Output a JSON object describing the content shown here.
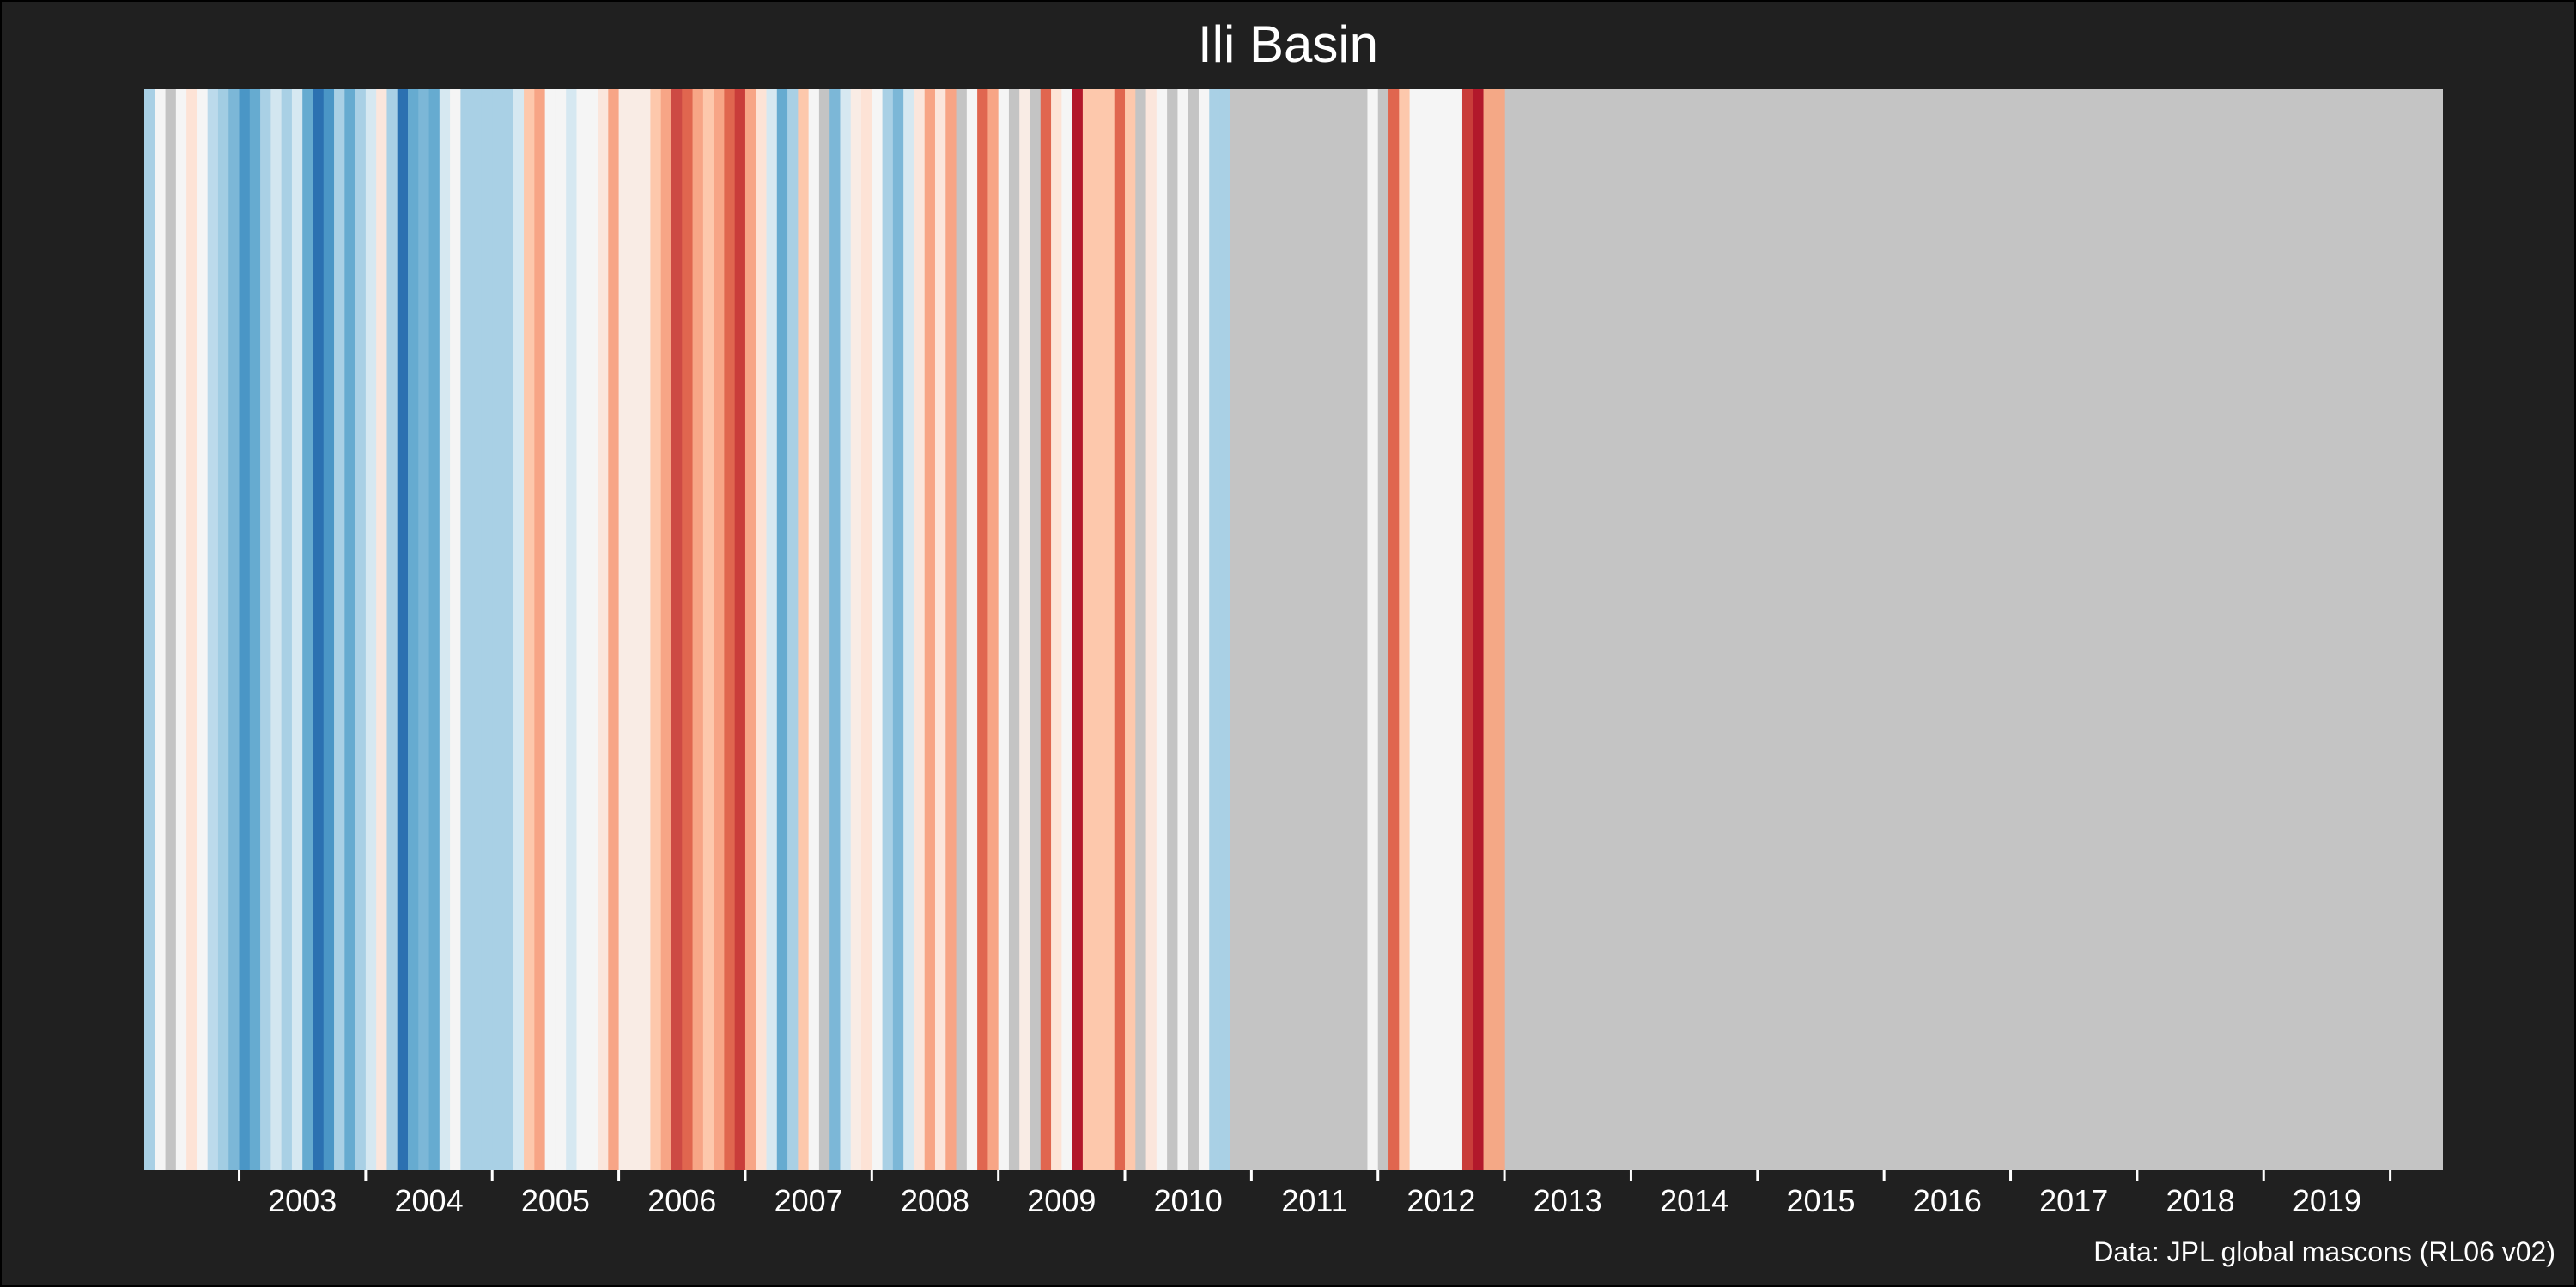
{
  "chart_data": {
    "type": "heatmap",
    "title": "Ili Basin",
    "xlabel": "",
    "ylabel": "",
    "caption": "Data: JPL global mascons (RL06 v02)",
    "x_start": "2002-04",
    "x_end": "2020-06",
    "tick_labels": [
      "2003",
      "2004",
      "2005",
      "2006",
      "2007",
      "2008",
      "2009",
      "2010",
      "2011",
      "2012",
      "2013",
      "2014",
      "2015",
      "2016",
      "2017",
      "2018",
      "2019"
    ],
    "missing_color": "#c4c4c4",
    "stripes": [
      {
        "month": "2002-04",
        "color": "#a9d0e5"
      },
      {
        "month": "2002-05",
        "color": "#f5f5f5"
      },
      {
        "month": "2002-06",
        "color": "#c4c4c4"
      },
      {
        "month": "2002-07",
        "color": "#f5f5f5"
      },
      {
        "month": "2002-08",
        "color": "#fde3d6"
      },
      {
        "month": "2002-09",
        "color": "#f5f5f5"
      },
      {
        "month": "2002-10",
        "color": "#bcdaeb"
      },
      {
        "month": "2002-11",
        "color": "#a2cde3"
      },
      {
        "month": "2002-12",
        "color": "#7cb7d7"
      },
      {
        "month": "2003-01",
        "color": "#4a96c6"
      },
      {
        "month": "2003-02",
        "color": "#66abd0"
      },
      {
        "month": "2003-03",
        "color": "#a9d0e5"
      },
      {
        "month": "2003-04",
        "color": "#d3e6f0"
      },
      {
        "month": "2003-05",
        "color": "#a9d0e5"
      },
      {
        "month": "2003-06",
        "color": "#d6e8f1"
      },
      {
        "month": "2003-07",
        "color": "#66abd0"
      },
      {
        "month": "2003-08",
        "color": "#2b71b1"
      },
      {
        "month": "2003-09",
        "color": "#4a96c6"
      },
      {
        "month": "2003-10",
        "color": "#a9d0e5"
      },
      {
        "month": "2003-11",
        "color": "#66abd0"
      },
      {
        "month": "2003-12",
        "color": "#a9d0e5"
      },
      {
        "month": "2004-01",
        "color": "#d6e8f1"
      },
      {
        "month": "2004-02",
        "color": "#fbe6dc"
      },
      {
        "month": "2004-03",
        "color": "#a9d0e5"
      },
      {
        "month": "2004-04",
        "color": "#2b71b1"
      },
      {
        "month": "2004-05",
        "color": "#66abd0"
      },
      {
        "month": "2004-06",
        "color": "#7cb7d7"
      },
      {
        "month": "2004-07",
        "color": "#66abd0"
      },
      {
        "month": "2004-08",
        "color": "#d6e8f1"
      },
      {
        "month": "2004-09",
        "color": "#f5f5f5"
      },
      {
        "month": "2004-10",
        "color": "#a9d0e5"
      },
      {
        "month": "2004-11",
        "color": "#a9d0e5"
      },
      {
        "month": "2004-12",
        "color": "#a9d0e5"
      },
      {
        "month": "2005-01",
        "color": "#a9d0e5"
      },
      {
        "month": "2005-02",
        "color": "#a9d0e5"
      },
      {
        "month": "2005-03",
        "color": "#d6e8f1"
      },
      {
        "month": "2005-04",
        "color": "#fdc8ac"
      },
      {
        "month": "2005-05",
        "color": "#f7a586"
      },
      {
        "month": "2005-06",
        "color": "#f5f5f5"
      },
      {
        "month": "2005-07",
        "color": "#f5f5f5"
      },
      {
        "month": "2005-08",
        "color": "#d6e8f1"
      },
      {
        "month": "2005-09",
        "color": "#f5f5f5"
      },
      {
        "month": "2005-10",
        "color": "#f5f5f5"
      },
      {
        "month": "2005-11",
        "color": "#fbe6dc"
      },
      {
        "month": "2005-12",
        "color": "#f7a586"
      },
      {
        "month": "2006-01",
        "color": "#f9ece5"
      },
      {
        "month": "2006-02",
        "color": "#f9ece5"
      },
      {
        "month": "2006-03",
        "color": "#f9ece5"
      },
      {
        "month": "2006-04",
        "color": "#fdc8ac"
      },
      {
        "month": "2006-05",
        "color": "#f7a586"
      },
      {
        "month": "2006-06",
        "color": "#cd4a44"
      },
      {
        "month": "2006-07",
        "color": "#e0664f"
      },
      {
        "month": "2006-08",
        "color": "#f7a586"
      },
      {
        "month": "2006-09",
        "color": "#fdc8ac"
      },
      {
        "month": "2006-10",
        "color": "#f7a586"
      },
      {
        "month": "2006-11",
        "color": "#e0664f"
      },
      {
        "month": "2006-12",
        "color": "#c93d3a"
      },
      {
        "month": "2007-01",
        "color": "#f7a586"
      },
      {
        "month": "2007-02",
        "color": "#fde3d6"
      },
      {
        "month": "2007-03",
        "color": "#d6e8f1"
      },
      {
        "month": "2007-04",
        "color": "#66abd0"
      },
      {
        "month": "2007-05",
        "color": "#a9d0e5"
      },
      {
        "month": "2007-06",
        "color": "#fdc8ac"
      },
      {
        "month": "2007-07",
        "color": "#f5f5f5"
      },
      {
        "month": "2007-08",
        "color": "#c4c4c4"
      },
      {
        "month": "2007-09",
        "color": "#7cb7d7"
      },
      {
        "month": "2007-10",
        "color": "#d6e8f1"
      },
      {
        "month": "2007-11",
        "color": "#f9ece5"
      },
      {
        "month": "2007-12",
        "color": "#fde3d6"
      },
      {
        "month": "2008-01",
        "color": "#f5f5f5"
      },
      {
        "month": "2008-02",
        "color": "#a9d0e5"
      },
      {
        "month": "2008-03",
        "color": "#7cb7d7"
      },
      {
        "month": "2008-04",
        "color": "#d6e8f1"
      },
      {
        "month": "2008-05",
        "color": "#fbe6dc"
      },
      {
        "month": "2008-06",
        "color": "#f7a586"
      },
      {
        "month": "2008-07",
        "color": "#fbe6dc"
      },
      {
        "month": "2008-08",
        "color": "#f7a586"
      },
      {
        "month": "2008-09",
        "color": "#c4c4c4"
      },
      {
        "month": "2008-10",
        "color": "#f5f5f5"
      },
      {
        "month": "2008-11",
        "color": "#e0664f"
      },
      {
        "month": "2008-12",
        "color": "#f7a586"
      },
      {
        "month": "2009-01",
        "color": "#f5f5f5"
      },
      {
        "month": "2009-02",
        "color": "#c4c4c4"
      },
      {
        "month": "2009-03",
        "color": "#f9ece5"
      },
      {
        "month": "2009-04",
        "color": "#c4c4c4"
      },
      {
        "month": "2009-05",
        "color": "#e0664f"
      },
      {
        "month": "2009-06",
        "color": "#fde3d6"
      },
      {
        "month": "2009-07",
        "color": "#f5f5f5"
      },
      {
        "month": "2009-08",
        "color": "#b2182b"
      },
      {
        "month": "2009-09",
        "color": "#fdc8ac"
      },
      {
        "month": "2009-10",
        "color": "#fdc8ac"
      },
      {
        "month": "2009-11",
        "color": "#fdc8ac"
      },
      {
        "month": "2009-12",
        "color": "#e0664f"
      },
      {
        "month": "2010-01",
        "color": "#fdc8ac"
      },
      {
        "month": "2010-02",
        "color": "#c4c4c4"
      },
      {
        "month": "2010-03",
        "color": "#fbe6dc"
      },
      {
        "month": "2010-04",
        "color": "#f5f5f5"
      },
      {
        "month": "2010-05",
        "color": "#c4c4c4"
      },
      {
        "month": "2010-06",
        "color": "#f5f5f5"
      },
      {
        "month": "2010-07",
        "color": "#c4c4c4"
      },
      {
        "month": "2010-08",
        "color": "#f5f5f5"
      },
      {
        "month": "2010-09",
        "color": "#a9d0e5"
      },
      {
        "month": "2010-10",
        "color": "#a9d0e5"
      },
      {
        "month": "2010-11",
        "color": "#c4c4c4"
      },
      {
        "month": "2010-12",
        "color": "#c4c4c4"
      },
      {
        "month": "2011-01",
        "color": "#c4c4c4"
      },
      {
        "month": "2011-02",
        "color": "#c4c4c4"
      },
      {
        "month": "2011-03",
        "color": "#c4c4c4"
      },
      {
        "month": "2011-04",
        "color": "#c4c4c4"
      },
      {
        "month": "2011-05",
        "color": "#c4c4c4"
      },
      {
        "month": "2011-06",
        "color": "#c4c4c4"
      },
      {
        "month": "2011-07",
        "color": "#c4c4c4"
      },
      {
        "month": "2011-08",
        "color": "#c4c4c4"
      },
      {
        "month": "2011-09",
        "color": "#c4c4c4"
      },
      {
        "month": "2011-10",
        "color": "#c4c4c4"
      },
      {
        "month": "2011-11",
        "color": "#c4c4c4"
      },
      {
        "month": "2011-12",
        "color": "#f5f5f5"
      },
      {
        "month": "2012-01",
        "color": "#c4c4c4"
      },
      {
        "month": "2012-02",
        "color": "#e0664f"
      },
      {
        "month": "2012-03",
        "color": "#fdc8ac"
      },
      {
        "month": "2012-04",
        "color": "#f5f5f5"
      },
      {
        "month": "2012-05",
        "color": "#f5f5f5"
      },
      {
        "month": "2012-06",
        "color": "#f5f5f5"
      },
      {
        "month": "2012-07",
        "color": "#f5f5f5"
      },
      {
        "month": "2012-08",
        "color": "#f5f5f5"
      },
      {
        "month": "2012-09",
        "color": "#c93d3a"
      },
      {
        "month": "2012-10",
        "color": "#b2182b"
      },
      {
        "month": "2012-11",
        "color": "#f4a886"
      },
      {
        "month": "2012-12",
        "color": "#f4a886"
      }
    ]
  }
}
